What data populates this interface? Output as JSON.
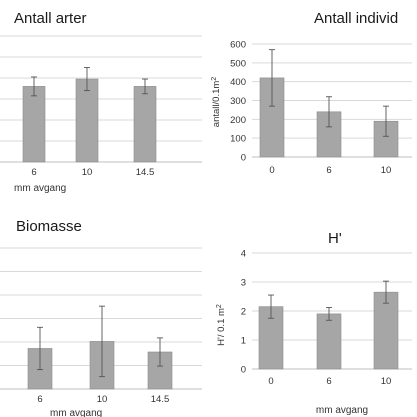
{
  "chart_data": [
    {
      "type": "bar",
      "title": "Antall arter",
      "xlabel": "mm avgang",
      "ylabel": "",
      "categories": [
        "6",
        "10",
        "14.5"
      ],
      "values": [
        3.6,
        3.95,
        3.6
      ],
      "errors": [
        0.45,
        0.55,
        0.35
      ],
      "ylim": [
        0,
        6
      ],
      "error_bars": true,
      "y_axis_shown": false
    },
    {
      "type": "bar",
      "title": "Antall individ",
      "xlabel": "",
      "ylabel": "antall/0.1m²",
      "categories": [
        "0",
        "6",
        "10"
      ],
      "values": [
        420,
        240,
        190
      ],
      "errors": [
        150,
        80,
        80
      ],
      "ylim": [
        0,
        600
      ],
      "yticks": [
        "0",
        "100",
        "200",
        "300",
        "400",
        "500",
        "600"
      ],
      "error_bars": true,
      "y_axis_shown": true
    },
    {
      "type": "bar",
      "title": "Biomasse",
      "xlabel": "mm avgang",
      "ylabel": "",
      "categories": [
        "6",
        "10",
        "14.5"
      ],
      "values": [
        1.15,
        1.35,
        1.05
      ],
      "errors": [
        0.6,
        1.0,
        0.4
      ],
      "ylim": [
        0,
        4
      ],
      "error_bars": true,
      "y_axis_shown": false
    },
    {
      "type": "bar",
      "title": "H'",
      "xlabel": "mm avgang",
      "ylabel": "H'/ 0.1 m²",
      "categories": [
        "0",
        "6",
        "10"
      ],
      "values": [
        2.15,
        1.9,
        2.65
      ],
      "errors": [
        0.4,
        0.22,
        0.38
      ],
      "ylim": [
        0,
        4
      ],
      "yticks": [
        "0",
        "1",
        "2",
        "3",
        "4"
      ],
      "error_bars": true,
      "y_axis_shown": true
    }
  ],
  "colors": {
    "bar_fill": "#a6a6a6",
    "bar_stroke": "#8c8c8c",
    "grid": "#d9d9d9",
    "error": "#555555"
  }
}
